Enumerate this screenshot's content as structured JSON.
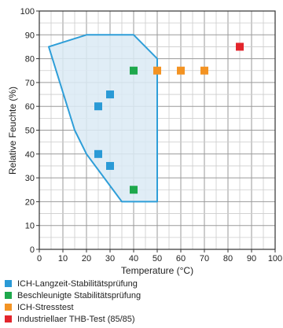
{
  "chart_data": {
    "type": "scatter",
    "xlabel": "Temperature (°C)",
    "ylabel": "Relative Feuchte (%)",
    "xlim": [
      0,
      100
    ],
    "ylim": [
      0,
      100
    ],
    "x_ticks": [
      0,
      10,
      20,
      30,
      40,
      50,
      60,
      70,
      80,
      90,
      100
    ],
    "y_ticks": [
      0,
      10,
      20,
      30,
      40,
      50,
      60,
      70,
      80,
      90,
      100
    ],
    "grid": "major and minor (5-unit) gridlines",
    "region": {
      "fill": "#daeaf5",
      "stroke": "#2e9ed8",
      "points": [
        [
          4,
          85
        ],
        [
          20,
          90
        ],
        [
          40,
          90
        ],
        [
          50,
          80
        ],
        [
          50,
          20
        ],
        [
          35,
          20
        ],
        [
          20,
          40
        ],
        [
          15,
          50
        ],
        [
          4,
          85
        ]
      ]
    },
    "series": [
      {
        "name": "ICH-Langzeit-Stabilitätsprüfung",
        "color": "#2a9ad6",
        "points": [
          [
            25,
            60
          ],
          [
            30,
            65
          ],
          [
            25,
            40
          ],
          [
            30,
            35
          ]
        ]
      },
      {
        "name": "Beschleunigte Stabilitätsprüfung",
        "color": "#1ea84c",
        "points": [
          [
            40,
            75
          ],
          [
            40,
            25
          ]
        ]
      },
      {
        "name": "ICH-Stresstest",
        "color": "#f39323",
        "points": [
          [
            50,
            75
          ],
          [
            60,
            75
          ],
          [
            70,
            75
          ]
        ]
      },
      {
        "name": "Industriellaer THB-Test (85/85)",
        "color": "#e3252c",
        "points": [
          [
            85,
            85
          ]
        ]
      }
    ],
    "legend_position": "bottom-left"
  }
}
